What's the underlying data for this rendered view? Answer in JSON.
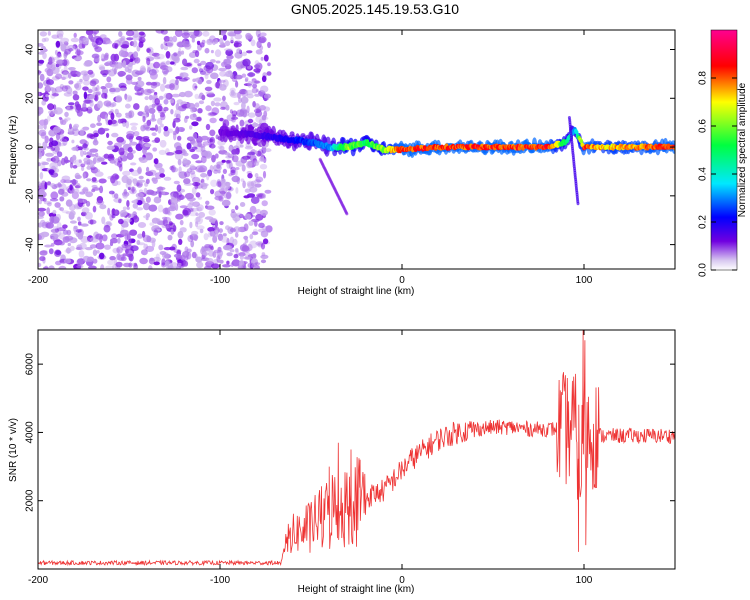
{
  "title": "GN05.2025.145.19.53.G10",
  "chart_data": [
    {
      "type": "heatmap",
      "xlabel": "Height of straight line (km)",
      "ylabel": "Frequency (Hz)",
      "xlim": [
        -200,
        150
      ],
      "ylim": [
        -50,
        48
      ],
      "xticks": [
        "-200",
        "-100",
        "0",
        "100"
      ],
      "yticks": [
        "40",
        "20",
        "0",
        "-20",
        "-40"
      ],
      "colorbar": {
        "label": "Normalized spectral amplitude",
        "ticks": [
          "0.0",
          "0.2",
          "0.4",
          "0.6",
          "0.8"
        ],
        "range": [
          0,
          1
        ],
        "colormap": [
          "#d8c8f0",
          "#7000e0",
          "#0000ff",
          "#00e8ff",
          "#00ff40",
          "#ffff00",
          "#ff0000",
          "#ff0090"
        ]
      },
      "ridge": {
        "description_values_x_km": [
          -100,
          -80,
          -60,
          -50,
          -40,
          -30,
          -20,
          -10,
          0,
          20,
          50,
          80,
          90,
          95,
          100,
          110,
          150
        ],
        "frequency_hz": [
          6,
          5,
          3,
          2,
          0,
          0,
          2,
          -1,
          -1,
          0,
          0,
          0,
          2,
          7,
          0,
          0,
          0
        ],
        "amplitude": [
          0.15,
          0.2,
          0.3,
          0.35,
          0.4,
          0.7,
          0.6,
          0.7,
          0.9,
          0.9,
          0.9,
          0.9,
          0.6,
          0.4,
          0.9,
          0.8,
          0.9
        ]
      },
      "noise_region_x_km": [
        -200,
        -73
      ]
    },
    {
      "type": "line",
      "xlabel": "Height of straight line (km)",
      "ylabel": "SNR (10 * v/v)",
      "xlim": [
        -200,
        150
      ],
      "ylim": [
        0,
        7000
      ],
      "xticks": [
        "-200",
        "-100",
        "0",
        "100"
      ],
      "yticks": [
        "6000",
        "4000",
        "2000"
      ],
      "color": "#ee3333",
      "x": [
        -200,
        -150,
        -100,
        -66,
        -63,
        -55,
        -50,
        -45,
        -40,
        -35,
        -30,
        -25,
        -20,
        -15,
        -10,
        -5,
        0,
        5,
        10,
        15,
        20,
        30,
        40,
        50,
        60,
        70,
        80,
        90,
        95,
        98,
        100,
        102,
        105,
        110,
        120,
        130,
        140,
        150
      ],
      "values": [
        180,
        180,
        180,
        180,
        900,
        1100,
        1300,
        1500,
        1700,
        1800,
        1900,
        2000,
        2100,
        2200,
        2300,
        2600,
        2900,
        3200,
        3400,
        3600,
        3800,
        4000,
        4100,
        4150,
        4150,
        4100,
        4100,
        4100,
        4200,
        3000,
        4100,
        4000,
        4000,
        3900,
        3900,
        3900,
        3900,
        3900
      ]
    }
  ]
}
